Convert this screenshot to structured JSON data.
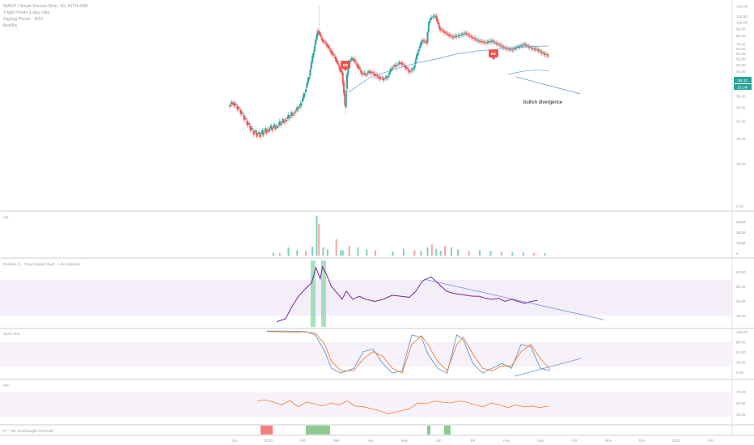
{
  "colors": {
    "up": "#26a69a",
    "down": "#ef5350",
    "up_vol": "#7fcfbf",
    "down_vol": "#f4a6a4",
    "ma": "#5b9bd5",
    "trendline": "#6f8dd8",
    "rsi_line": "#7b1fa2",
    "rsi_band": "#f4eef8",
    "stoch_k": "#5b9bd5",
    "stoch_d": "#f57c2a",
    "mfi_line": "#f57c2a",
    "price_label_bg": "#26a69a",
    "signal_bg": "#ef5350",
    "green_block": "#66bb6a",
    "red_block": "#ef5350"
  },
  "header": {
    "title": "WAXP / South Korean Won, 1D, BITHUMB",
    "line2": "Triple Pivots 1-day ratio",
    "line3": "ZigZag Pivots · 8/16",
    "line4": "Bull/Bs"
  },
  "price_labels": {
    "last": "58.32",
    "countdown": "1d 14h"
  },
  "annotation": "bullish divergence",
  "signals": [
    "BE",
    "BE"
  ],
  "panes": {
    "volume": {
      "label": "Vol"
    },
    "rsi": {
      "label": "Relative S... Trend Model Divid... Line Indicator"
    },
    "stoch": {
      "label": "Stoch RSI"
    },
    "mfi": {
      "label": "MFI"
    },
    "bottom": {
      "label": "PI – Mix Overbought Oversold"
    }
  },
  "x_axis": [
    "Jun",
    "2020",
    "Feb",
    "Mar",
    "Apr",
    "May",
    "Jun",
    "Jul",
    "Aug",
    "Sep",
    "Oct",
    "Nov",
    "Dec",
    "2021",
    "Feb"
  ],
  "chart_data": [
    {
      "type": "candlestick",
      "title": "WAXP / South Korean Won, 1D, BITHUMB",
      "y_ticks": [
        "130.00",
        "110.00",
        "100.00",
        "90.00",
        "80.00",
        "70.00",
        "65.00",
        "60.00",
        "55.00",
        "50.00",
        "45.00",
        "40.00",
        "35.00",
        "30.00",
        "25.00",
        "20.00",
        "15.00",
        "10.00",
        "5.00"
      ],
      "last_price": 58.32,
      "price_path": [
        [
          0,
          26
        ],
        [
          4,
          27
        ],
        [
          10,
          24
        ],
        [
          16,
          20
        ],
        [
          22,
          17
        ],
        [
          28,
          16
        ],
        [
          36,
          17.5
        ],
        [
          44,
          18.5
        ],
        [
          52,
          20.5
        ],
        [
          60,
          23
        ],
        [
          66,
          26
        ],
        [
          70,
          32
        ],
        [
          74,
          42
        ],
        [
          78,
          62
        ],
        [
          82,
          88
        ],
        [
          86,
          75
        ],
        [
          90,
          70
        ],
        [
          94,
          62
        ],
        [
          98,
          56
        ],
        [
          102,
          47
        ],
        [
          104,
          44
        ],
        [
          107,
          25
        ],
        [
          110,
          52
        ],
        [
          114,
          56
        ],
        [
          118,
          50
        ],
        [
          122,
          44
        ],
        [
          126,
          43
        ],
        [
          130,
          45
        ],
        [
          134,
          43
        ],
        [
          138,
          41
        ],
        [
          142,
          40
        ],
        [
          146,
          41
        ],
        [
          150,
          48
        ],
        [
          154,
          50
        ],
        [
          158,
          52
        ],
        [
          162,
          49
        ],
        [
          166,
          45
        ],
        [
          170,
          47
        ],
        [
          174,
          62
        ],
        [
          178,
          75
        ],
        [
          182,
          72
        ],
        [
          184,
          100
        ],
        [
          186,
          108
        ],
        [
          190,
          112
        ],
        [
          194,
          90
        ],
        [
          198,
          86
        ],
        [
          202,
          82
        ],
        [
          206,
          79
        ],
        [
          212,
          81
        ],
        [
          218,
          84
        ],
        [
          224,
          78
        ],
        [
          230,
          74
        ],
        [
          236,
          72
        ],
        [
          242,
          74
        ],
        [
          248,
          70
        ],
        [
          254,
          66
        ],
        [
          260,
          64
        ],
        [
          266,
          67
        ],
        [
          272,
          70
        ],
        [
          278,
          66
        ],
        [
          284,
          64
        ],
        [
          290,
          60
        ],
        [
          294,
          58.3
        ]
      ],
      "ma_path": [
        [
          110,
          32
        ],
        [
          130,
          41
        ],
        [
          150,
          46
        ],
        [
          170,
          51
        ],
        [
          190,
          55
        ],
        [
          210,
          60
        ],
        [
          230,
          63
        ],
        [
          250,
          65
        ],
        [
          270,
          67
        ],
        [
          290,
          68
        ],
        [
          294,
          68
        ]
      ],
      "annotation": "bullish divergence",
      "signals": [
        {
          "x": 99,
          "label": "BE"
        },
        {
          "x": 238,
          "label": "BE"
        }
      ]
    },
    {
      "type": "bar",
      "name": "Vol",
      "y_ticks": [
        "500M",
        "300M",
        "100M",
        "0"
      ],
      "values": [
        [
          40,
          20
        ],
        [
          46,
          18
        ],
        [
          54,
          60
        ],
        [
          62,
          40
        ],
        [
          70,
          35
        ],
        [
          76,
          65
        ],
        [
          80,
          290
        ],
        [
          82,
          230
        ],
        [
          86,
          60
        ],
        [
          90,
          45
        ],
        [
          98,
          120
        ],
        [
          102,
          35
        ],
        [
          104,
          40
        ],
        [
          110,
          70
        ],
        [
          118,
          60
        ],
        [
          126,
          45
        ],
        [
          134,
          40
        ],
        [
          150,
          30
        ],
        [
          160,
          50
        ],
        [
          170,
          40
        ],
        [
          176,
          35
        ],
        [
          182,
          60
        ],
        [
          186,
          80
        ],
        [
          190,
          50
        ],
        [
          194,
          35
        ],
        [
          198,
          70
        ],
        [
          204,
          60
        ],
        [
          210,
          45
        ],
        [
          220,
          35
        ],
        [
          230,
          40
        ],
        [
          240,
          35
        ],
        [
          250,
          30
        ],
        [
          260,
          25
        ],
        [
          270,
          25
        ],
        [
          280,
          20
        ],
        [
          290,
          18
        ]
      ]
    },
    {
      "type": "line",
      "name": "RSI",
      "y_ticks": [
        "80.00",
        "65.00",
        "50.00",
        "35.00"
      ],
      "values": [
        [
          44,
          30
        ],
        [
          52,
          33
        ],
        [
          58,
          45
        ],
        [
          64,
          55
        ],
        [
          70,
          62
        ],
        [
          76,
          68
        ],
        [
          80,
          83
        ],
        [
          84,
          72
        ],
        [
          86,
          84
        ],
        [
          90,
          76
        ],
        [
          94,
          65
        ],
        [
          98,
          60
        ],
        [
          102,
          55
        ],
        [
          104,
          52
        ],
        [
          108,
          60
        ],
        [
          114,
          52
        ],
        [
          120,
          55
        ],
        [
          126,
          52
        ],
        [
          134,
          50
        ],
        [
          142,
          52
        ],
        [
          150,
          56
        ],
        [
          158,
          55
        ],
        [
          166,
          54
        ],
        [
          172,
          60
        ],
        [
          178,
          70
        ],
        [
          182,
          72
        ],
        [
          186,
          74
        ],
        [
          190,
          70
        ],
        [
          194,
          66
        ],
        [
          200,
          60
        ],
        [
          206,
          58
        ],
        [
          212,
          57
        ],
        [
          218,
          56
        ],
        [
          224,
          55
        ],
        [
          230,
          55
        ],
        [
          236,
          53
        ],
        [
          242,
          52
        ],
        [
          248,
          53
        ],
        [
          254,
          50
        ],
        [
          260,
          52
        ],
        [
          266,
          50
        ],
        [
          272,
          48
        ],
        [
          278,
          50
        ],
        [
          284,
          51
        ]
      ]
    },
    {
      "type": "line",
      "name": "Stoch RSI",
      "y_ticks": [
        "100.00",
        "80.00",
        "50.00",
        "20.00",
        "0.00"
      ],
      "series": [
        {
          "name": "K",
          "values": [
            [
              0,
              98
            ],
            [
              12,
              98
            ],
            [
              24,
              97
            ],
            [
              30,
              90
            ],
            [
              36,
              55
            ],
            [
              40,
              20
            ],
            [
              46,
              10
            ],
            [
              54,
              20
            ],
            [
              60,
              55
            ],
            [
              66,
              60
            ],
            [
              72,
              30
            ],
            [
              78,
              10
            ],
            [
              84,
              15
            ],
            [
              90,
              90
            ],
            [
              96,
              85
            ],
            [
              100,
              50
            ],
            [
              106,
              20
            ],
            [
              112,
              10
            ],
            [
              118,
              90
            ],
            [
              122,
              80
            ],
            [
              128,
              30
            ],
            [
              134,
              10
            ],
            [
              140,
              20
            ],
            [
              146,
              30
            ],
            [
              152,
              20
            ],
            [
              158,
              70
            ],
            [
              164,
              65
            ],
            [
              170,
              20
            ],
            [
              176,
              15
            ]
          ]
        },
        {
          "name": "D",
          "values": [
            [
              0,
              97
            ],
            [
              12,
              96
            ],
            [
              24,
              96
            ],
            [
              30,
              94
            ],
            [
              36,
              70
            ],
            [
              40,
              35
            ],
            [
              46,
              15
            ],
            [
              54,
              15
            ],
            [
              60,
              40
            ],
            [
              66,
              55
            ],
            [
              72,
              45
            ],
            [
              78,
              20
            ],
            [
              84,
              10
            ],
            [
              90,
              70
            ],
            [
              96,
              88
            ],
            [
              100,
              70
            ],
            [
              106,
              35
            ],
            [
              112,
              15
            ],
            [
              118,
              70
            ],
            [
              122,
              85
            ],
            [
              128,
              50
            ],
            [
              134,
              20
            ],
            [
              140,
              15
            ],
            [
              146,
              25
            ],
            [
              152,
              25
            ],
            [
              158,
              55
            ],
            [
              164,
              70
            ],
            [
              170,
              40
            ],
            [
              176,
              18
            ]
          ]
        }
      ]
    },
    {
      "type": "line",
      "name": "MFI",
      "y_ticks": [
        "75.00",
        "50.00",
        "25.00"
      ],
      "values": [
        [
          0,
          55
        ],
        [
          6,
          58
        ],
        [
          12,
          52
        ],
        [
          18,
          45
        ],
        [
          24,
          56
        ],
        [
          30,
          40
        ],
        [
          36,
          52
        ],
        [
          42,
          48
        ],
        [
          48,
          42
        ],
        [
          54,
          50
        ],
        [
          60,
          45
        ],
        [
          66,
          55
        ],
        [
          72,
          42
        ],
        [
          78,
          40
        ],
        [
          84,
          35
        ],
        [
          90,
          30
        ],
        [
          96,
          22
        ],
        [
          100,
          25
        ],
        [
          106,
          30
        ],
        [
          112,
          35
        ],
        [
          118,
          50
        ],
        [
          124,
          48
        ],
        [
          130,
          55
        ],
        [
          136,
          52
        ],
        [
          142,
          50
        ],
        [
          148,
          55
        ],
        [
          154,
          52
        ],
        [
          160,
          45
        ],
        [
          166,
          40
        ],
        [
          172,
          50
        ],
        [
          178,
          45
        ],
        [
          184,
          38
        ],
        [
          190,
          45
        ],
        [
          196,
          40
        ],
        [
          202,
          42
        ],
        [
          208,
          38
        ],
        [
          214,
          42
        ]
      ]
    }
  ]
}
